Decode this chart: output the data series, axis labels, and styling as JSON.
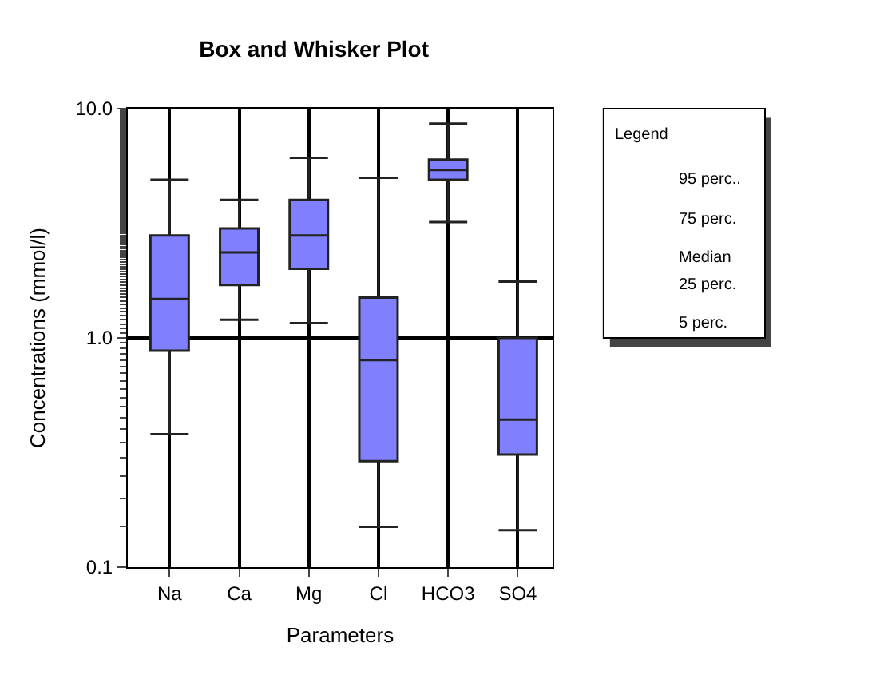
{
  "chart_data": {
    "type": "box",
    "title": "Box and Whisker Plot",
    "xlabel": "Parameters",
    "ylabel": "Concentrations (mmol/l)",
    "categories": [
      "Na",
      "Ca",
      "Mg",
      "Cl",
      "HCO3",
      "SO4"
    ],
    "series": [
      {
        "color": "#8080ff",
        "boxes": [
          {
            "low": 0.38,
            "q1": 0.88,
            "median": 1.48,
            "q3": 2.8,
            "high": 4.9
          },
          {
            "low": 1.2,
            "q1": 1.7,
            "median": 2.36,
            "q3": 3.0,
            "high": 4.0
          },
          {
            "low": 1.16,
            "q1": 2.0,
            "median": 2.8,
            "q3": 4.0,
            "high": 6.1
          },
          {
            "low": 0.15,
            "q1": 0.29,
            "median": 0.8,
            "q3": 1.5,
            "high": 5.0
          },
          {
            "low": 3.2,
            "q1": 4.9,
            "median": 5.4,
            "q3": 6.0,
            "high": 8.6
          },
          {
            "low": 0.145,
            "q1": 0.31,
            "median": 0.44,
            "q3": 1.0,
            "high": 1.76
          }
        ]
      }
    ],
    "log": "y",
    "ylim": [
      0.1,
      10
    ],
    "yticks": [
      {
        "value": 0.1,
        "label": "0.1"
      },
      {
        "value": 1,
        "label": "1.0"
      },
      {
        "value": 10,
        "label": "10.0"
      }
    ],
    "grid": true,
    "annotations": [
      "Legend",
      "95 perc..",
      "75 perc.",
      "Median",
      "25 perc.",
      "5 perc."
    ]
  }
}
